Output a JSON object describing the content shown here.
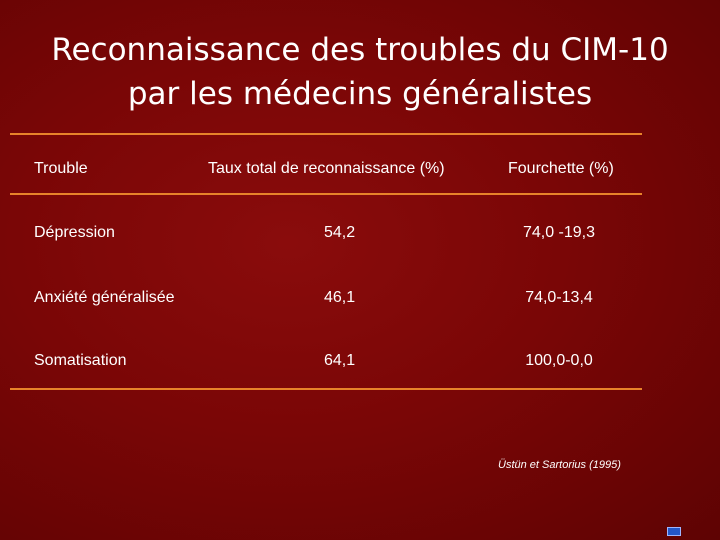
{
  "slide": {
    "title_line1": "Reconnaissance des troubles du CIM-10",
    "title_line2": "par les médecins généralistes",
    "source": "Üstün et Sartorius (1995)"
  },
  "table": {
    "headers": [
      "Trouble",
      "Taux total de reconnaissance (%)",
      "Fourchette (%)"
    ],
    "rows": [
      [
        "Dépression",
        "54,2",
        "74,0 -19,3"
      ],
      [
        "Anxiété généralisée",
        "46,1",
        "74,0-13,4"
      ],
      [
        "Somatisation",
        "64,1",
        "100,0-0,0"
      ]
    ]
  },
  "colors": {
    "background": "#7a0606",
    "rule": "#e8832a",
    "text": "#ffffff"
  }
}
